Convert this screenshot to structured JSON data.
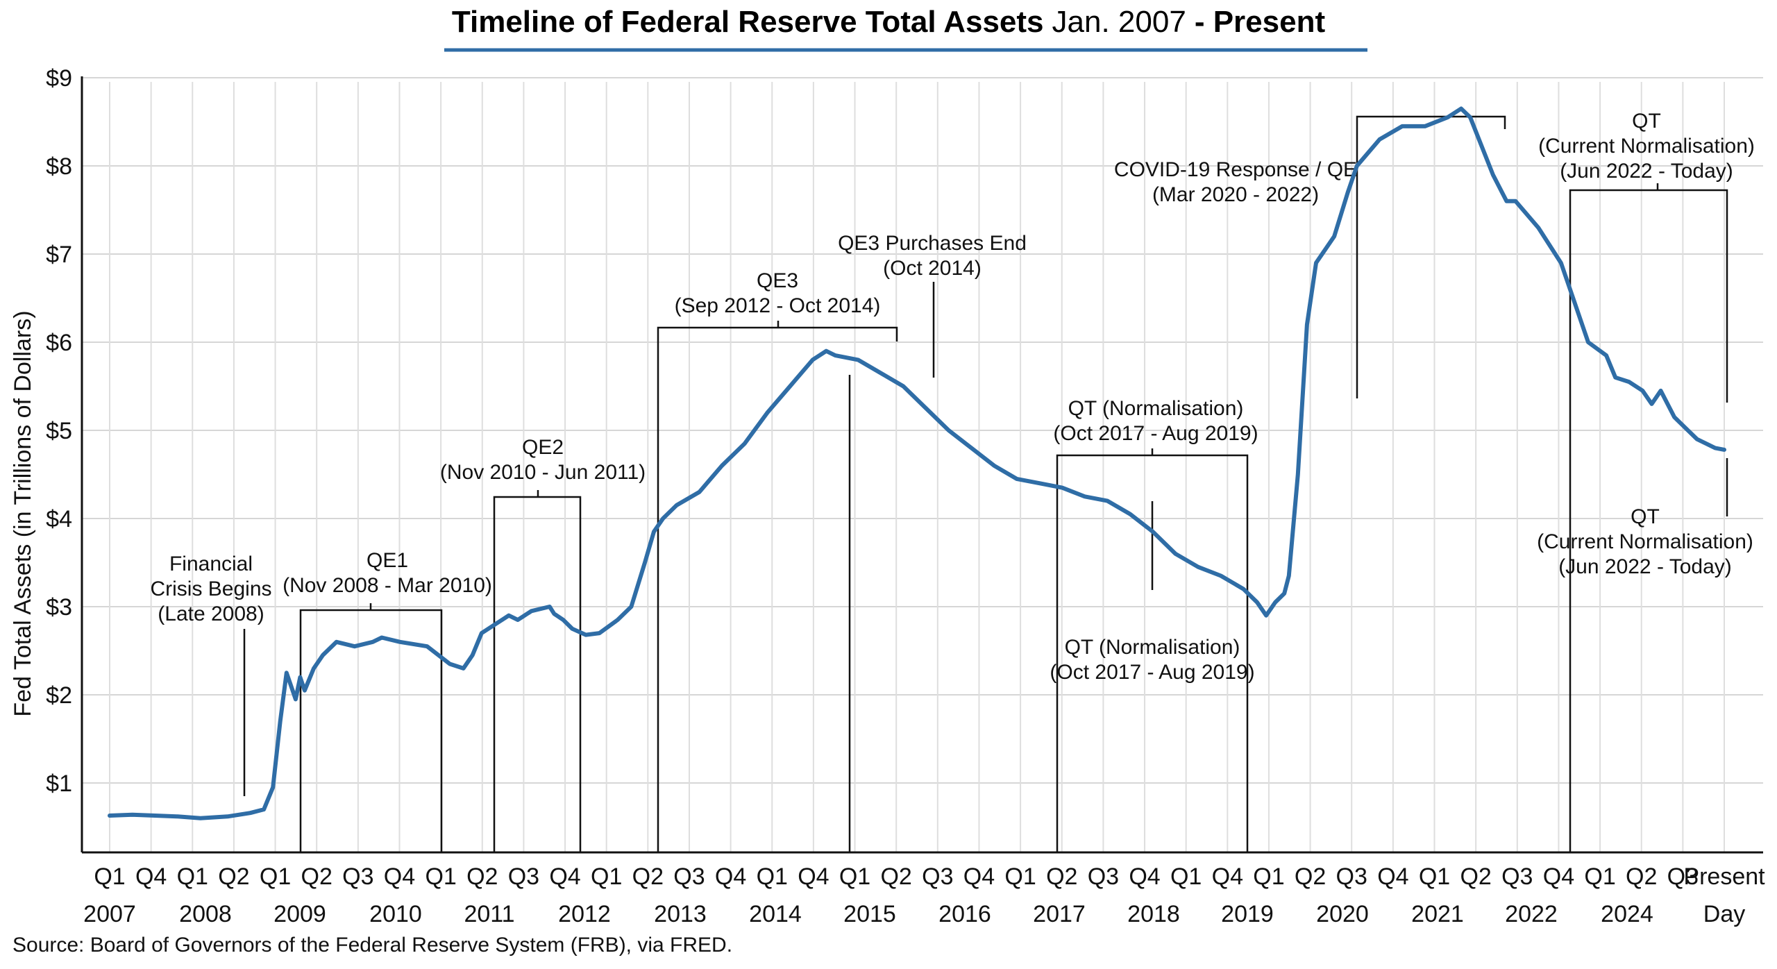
{
  "chart_data": {
    "type": "line",
    "title_main": "Timeline of Federal Reserve Total Assets",
    "title_range_a": "Jan. 2007",
    "title_range_b": "- Present",
    "ylabel": "Fed Total Assets (in Trillions of Dollars)",
    "ylim": [
      0,
      9
    ],
    "y_ticks": [
      "$1",
      "$2",
      "$3",
      "$4",
      "$5",
      "$6",
      "$7",
      "$8",
      "$9"
    ],
    "grid": true,
    "line_color": "#2f6da6",
    "quarter_ticks": [
      "Q1",
      "Q4",
      "Q1",
      "Q2",
      "Q1",
      "Q2",
      "Q3",
      "Q4",
      "Q1",
      "Q2",
      "Q3",
      "Q4",
      "Q1",
      "Q2",
      "Q3",
      "Q4",
      "Q1",
      "Q4",
      "Q1",
      "Q2",
      "Q3",
      "Q4",
      "Q1",
      "Q2",
      "Q3",
      "Q4",
      "Q1",
      "Q4",
      "Q1",
      "Q2",
      "Q3",
      "Q4",
      "Q1",
      "Q2",
      "Q3",
      "Q4",
      "Q1",
      "Q2",
      "Q3"
    ],
    "last_tick_top": "Present",
    "year_labels": [
      "2007",
      "2008",
      "2009",
      "2010",
      "2011",
      "2012",
      "2013",
      "2014",
      "2015",
      "2016",
      "2017",
      "2018",
      "2019",
      "2020",
      "2021",
      "2022",
      "2024"
    ],
    "last_tick_bottom": "Day",
    "series": [
      {
        "x": [
          2007.0,
          2007.25,
          2007.5,
          2007.75,
          2008.0,
          2008.3,
          2008.55,
          2008.7,
          2008.8,
          2008.88,
          2008.95,
          2009.05,
          2009.1,
          2009.15,
          2009.25,
          2009.35,
          2009.5,
          2009.7,
          2009.9,
          2010.0,
          2010.2,
          2010.5,
          2010.75,
          2010.9,
          2011.0,
          2011.1,
          2011.25,
          2011.4,
          2011.5,
          2011.65,
          2011.85,
          2011.9,
          2012.0,
          2012.1,
          2012.25,
          2012.4,
          2012.6,
          2012.75,
          2012.9,
          2013.0,
          2013.1,
          2013.25,
          2013.5,
          2013.75,
          2014.0,
          2014.25,
          2014.5,
          2014.75,
          2014.9,
          2015.0,
          2015.25,
          2015.5,
          2015.75,
          2016.0,
          2016.25,
          2016.5,
          2016.75,
          2017.0,
          2017.25,
          2017.5,
          2017.75,
          2018.0,
          2018.25,
          2018.5,
          2018.75,
          2019.0,
          2019.25,
          2019.5,
          2019.65,
          2019.75,
          2019.85,
          2019.95,
          2020.0,
          2020.1,
          2020.2,
          2020.3,
          2020.5,
          2020.65,
          2020.75,
          2021.0,
          2021.25,
          2021.5,
          2021.75,
          2021.9,
          2022.0,
          2022.25,
          2022.4,
          2022.5,
          2022.75,
          2023.0,
          2023.1,
          2023.3,
          2023.5,
          2023.6,
          2023.75,
          2023.9,
          2024.0,
          2024.1,
          2024.25,
          2024.4,
          2024.5,
          2024.6,
          2024.7,
          2024.8
        ],
        "y": [
          0.63,
          0.64,
          0.63,
          0.62,
          0.6,
          0.62,
          0.66,
          0.7,
          0.95,
          1.7,
          2.25,
          1.95,
          2.2,
          2.05,
          2.3,
          2.45,
          2.6,
          2.55,
          2.6,
          2.65,
          2.6,
          2.55,
          2.35,
          2.3,
          2.45,
          2.7,
          2.8,
          2.9,
          2.85,
          2.95,
          3.0,
          2.92,
          2.85,
          2.75,
          2.68,
          2.7,
          2.85,
          3.0,
          3.5,
          3.85,
          4.0,
          4.15,
          4.3,
          4.6,
          4.85,
          5.2,
          5.5,
          5.8,
          5.9,
          5.85,
          5.8,
          5.65,
          5.5,
          5.25,
          5.0,
          4.8,
          4.6,
          4.45,
          4.4,
          4.35,
          4.25,
          4.2,
          4.05,
          3.85,
          3.6,
          3.45,
          3.35,
          3.2,
          3.05,
          2.9,
          3.05,
          3.15,
          3.35,
          4.5,
          6.2,
          6.9,
          7.2,
          7.7,
          8.0,
          8.3,
          8.45,
          8.45,
          8.55,
          8.65,
          8.55,
          7.9,
          7.6,
          7.6,
          7.3,
          6.9,
          6.6,
          6.0,
          5.85,
          5.6,
          5.55,
          5.45,
          5.3,
          5.45,
          5.15,
          5.0,
          4.9,
          4.85,
          4.8,
          4.78
        ]
      }
    ],
    "annotations": [
      {
        "id": "crisis",
        "lines": [
          "Financial",
          "Crisis Begins",
          "(Late 2008)"
        ]
      },
      {
        "id": "qe1",
        "lines": [
          "QE1",
          "(Nov 2008 - Mar 2010)"
        ]
      },
      {
        "id": "qe2",
        "lines": [
          "QE2",
          "(Nov 2010 - Jun 2011)"
        ]
      },
      {
        "id": "qe3",
        "lines": [
          "QE3",
          "(Sep 2012 - Oct 2014)"
        ]
      },
      {
        "id": "qe3end",
        "lines": [
          "QE3 Purchases End",
          "(Oct 2014)"
        ]
      },
      {
        "id": "qt1_top",
        "lines": [
          "QT (Normalisation)",
          "(Oct 2017 - Aug 2019)"
        ]
      },
      {
        "id": "qt1_bottom",
        "lines": [
          "QT (Normalisation)",
          "(Oct 2017 - Aug 2019)"
        ]
      },
      {
        "id": "covid",
        "lines": [
          "COVID-19 Response / QE",
          "(Mar 2020 - 2022)"
        ]
      },
      {
        "id": "qt2_top",
        "lines": [
          "QT",
          "(Current Normalisation)",
          "(Jun 2022 - Today)"
        ]
      },
      {
        "id": "qt2_bottom",
        "lines": [
          "QT",
          "(Current Normalisation)",
          "(Jun 2022 - Today)"
        ]
      }
    ]
  },
  "source": "Source: Board of Governors of the Federal Reserve System (FRB), via FRED."
}
